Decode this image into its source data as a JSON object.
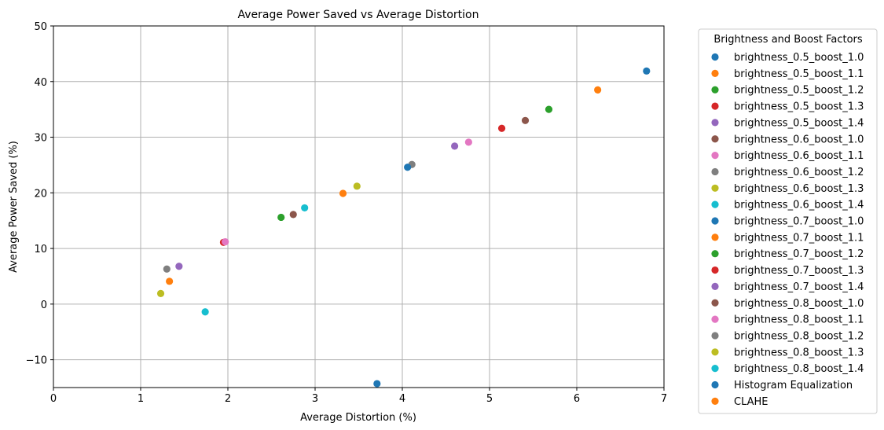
{
  "chart_data": {
    "type": "scatter",
    "title": "Average Power Saved vs Average Distortion",
    "xlabel": "Average Distortion (%)",
    "ylabel": "Average Power Saved (%)",
    "xlim": [
      0,
      7
    ],
    "ylim": [
      -15,
      50
    ],
    "xticks": [
      "0",
      "1",
      "2",
      "3",
      "4",
      "5",
      "6",
      "7"
    ],
    "yticks": [
      "−10",
      "0",
      "10",
      "20",
      "30",
      "40",
      "50"
    ],
    "grid": true,
    "legend_title": "Brightness and Boost Factors",
    "legend_position": "outside-right",
    "series": [
      {
        "name": "brightness_0.5_boost_1.0",
        "color": "#1f77b4",
        "x": 6.8,
        "y": 41.9
      },
      {
        "name": "brightness_0.5_boost_1.1",
        "color": "#ff7f0e",
        "x": 6.24,
        "y": 38.5
      },
      {
        "name": "brightness_0.5_boost_1.2",
        "color": "#2ca02c",
        "x": 5.68,
        "y": 35.0
      },
      {
        "name": "brightness_0.5_boost_1.3",
        "color": "#d62728",
        "x": 5.14,
        "y": 31.6
      },
      {
        "name": "brightness_0.5_boost_1.4",
        "color": "#9467bd",
        "x": 4.6,
        "y": 28.4
      },
      {
        "name": "brightness_0.6_boost_1.0",
        "color": "#8c564b",
        "x": 5.41,
        "y": 33.0
      },
      {
        "name": "brightness_0.6_boost_1.1",
        "color": "#e377c2",
        "x": 4.76,
        "y": 29.1
      },
      {
        "name": "brightness_0.6_boost_1.2",
        "color": "#7f7f7f",
        "x": 4.11,
        "y": 25.1
      },
      {
        "name": "brightness_0.6_boost_1.3",
        "color": "#bcbd22",
        "x": 3.48,
        "y": 21.2
      },
      {
        "name": "brightness_0.6_boost_1.4",
        "color": "#17becf",
        "x": 2.88,
        "y": 17.3
      },
      {
        "name": "brightness_0.7_boost_1.0",
        "color": "#1f77b4",
        "x": 4.06,
        "y": 24.6
      },
      {
        "name": "brightness_0.7_boost_1.1",
        "color": "#ff7f0e",
        "x": 3.32,
        "y": 19.9
      },
      {
        "name": "brightness_0.7_boost_1.2",
        "color": "#2ca02c",
        "x": 2.61,
        "y": 15.6
      },
      {
        "name": "brightness_0.7_boost_1.3",
        "color": "#d62728",
        "x": 1.95,
        "y": 11.1
      },
      {
        "name": "brightness_0.7_boost_1.4",
        "color": "#9467bd",
        "x": 1.44,
        "y": 6.8
      },
      {
        "name": "brightness_0.8_boost_1.0",
        "color": "#8c564b",
        "x": 2.75,
        "y": 16.1
      },
      {
        "name": "brightness_0.8_boost_1.1",
        "color": "#e377c2",
        "x": 1.97,
        "y": 11.2
      },
      {
        "name": "brightness_0.8_boost_1.2",
        "color": "#7f7f7f",
        "x": 1.3,
        "y": 6.3
      },
      {
        "name": "brightness_0.8_boost_1.3",
        "color": "#bcbd22",
        "x": 1.23,
        "y": 1.9
      },
      {
        "name": "brightness_0.8_boost_1.4",
        "color": "#17becf",
        "x": 1.74,
        "y": -1.4
      },
      {
        "name": "Histogram Equalization",
        "color": "#1f77b4",
        "x": 3.71,
        "y": -14.3
      },
      {
        "name": "CLAHE",
        "color": "#ff7f0e",
        "x": 1.33,
        "y": 4.1
      }
    ]
  }
}
